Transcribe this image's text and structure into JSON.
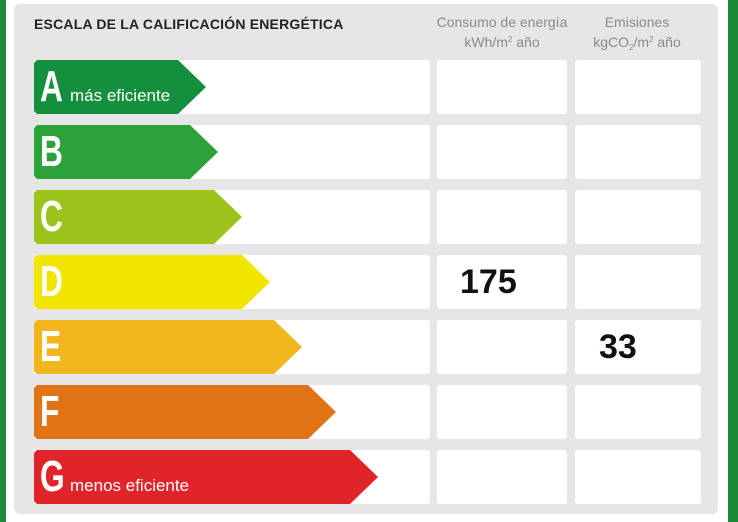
{
  "title": "ESCALA DE LA CALIFICACIÓN ENERGÉTICA",
  "columns": {
    "consumo": {
      "line1": "Consumo de energía",
      "line2_unit": "kWh/m",
      "line2_sup": "2",
      "line2_rest": " año"
    },
    "emisiones": {
      "line1": "Emisiones",
      "line2_unit": "kgCO",
      "line2_sub": "2",
      "line2_mid": "/m",
      "line2_sup": "2",
      "line2_rest": " año"
    }
  },
  "ratings": [
    {
      "letter": "A",
      "label": "más eficiente",
      "color": "#138f3e"
    },
    {
      "letter": "B",
      "label": "",
      "color": "#2da23a"
    },
    {
      "letter": "C",
      "label": "",
      "color": "#9bc31a"
    },
    {
      "letter": "D",
      "label": "",
      "color": "#f2e500"
    },
    {
      "letter": "E",
      "label": "",
      "color": "#f2b51c"
    },
    {
      "letter": "F",
      "label": "",
      "color": "#e17317"
    },
    {
      "letter": "G",
      "label": "menos eficiente",
      "color": "#e0242a"
    }
  ],
  "values": {
    "consumo_rating": "D",
    "consumo_value": "175",
    "emisiones_rating": "E",
    "emisiones_value": "33"
  }
}
